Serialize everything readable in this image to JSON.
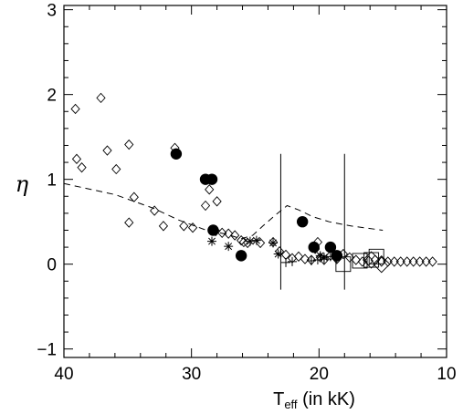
{
  "chart_data": {
    "type": "scatter",
    "title": "",
    "xlabel": {
      "main": "T",
      "sub": "eff",
      "suffix": " (in kK)"
    },
    "ylabel": "η",
    "xlim": [
      40,
      10
    ],
    "ylim": [
      -1.1,
      3.05
    ],
    "x_ticks": [
      40,
      30,
      20,
      10
    ],
    "y_ticks": [
      -1,
      0,
      1,
      2,
      3
    ],
    "x_tick_labels": [
      "40",
      "30",
      "20",
      "10"
    ],
    "y_tick_labels": [
      "−1",
      "0",
      "1",
      "2",
      "3"
    ],
    "grid": false,
    "legend": "none",
    "series": [
      {
        "marker": "open-diamond",
        "points": [
          [
            39.1,
            1.83
          ],
          [
            37.1,
            1.96
          ],
          [
            39.0,
            1.24
          ],
          [
            38.6,
            1.14
          ],
          [
            36.6,
            1.34
          ],
          [
            35.9,
            1.12
          ],
          [
            34.9,
            1.41
          ],
          [
            34.5,
            0.79
          ],
          [
            32.9,
            0.63
          ],
          [
            34.9,
            0.49
          ],
          [
            32.2,
            0.45
          ],
          [
            31.3,
            1.37
          ],
          [
            30.6,
            0.45
          ],
          [
            29.9,
            0.43
          ],
          [
            28.9,
            0.69
          ],
          [
            28.6,
            0.88
          ],
          [
            28.0,
            0.74
          ],
          [
            28.1,
            0.39
          ],
          [
            27.6,
            0.37
          ],
          [
            27.1,
            0.36
          ],
          [
            26.6,
            0.34
          ],
          [
            26.1,
            0.28
          ],
          [
            25.9,
            0.26
          ],
          [
            25.6,
            0.25
          ],
          [
            24.6,
            0.25
          ],
          [
            23.6,
            0.26
          ],
          [
            23.1,
            0.15
          ],
          [
            22.6,
            0.11
          ],
          [
            22.1,
            0.07
          ],
          [
            21.6,
            0.09
          ],
          [
            21.1,
            0.06
          ],
          [
            20.6,
            0.05
          ],
          [
            20.3,
            0.18
          ],
          [
            20.1,
            0.26
          ],
          [
            19.9,
            0.08
          ],
          [
            19.6,
            0.05
          ],
          [
            19.1,
            0.1
          ],
          [
            18.6,
            0.06
          ],
          [
            18.1,
            0.12
          ],
          [
            17.6,
            0.08
          ],
          [
            17.1,
            0.05
          ],
          [
            16.6,
            0.03
          ],
          [
            16.1,
            0.04
          ],
          [
            15.6,
            0.05
          ],
          [
            15.1,
            0.03
          ],
          [
            14.6,
            0.03
          ],
          [
            14.1,
            0.03
          ],
          [
            13.6,
            0.03
          ],
          [
            13.1,
            0.03
          ],
          [
            12.6,
            0.03
          ],
          [
            12.1,
            0.03
          ],
          [
            11.6,
            0.03
          ],
          [
            11.1,
            0.03
          ]
        ]
      },
      {
        "marker": "filled-circle",
        "points": [
          [
            31.2,
            1.3
          ],
          [
            28.9,
            1.0
          ],
          [
            28.4,
            1.0
          ],
          [
            28.3,
            0.4
          ],
          [
            26.1,
            0.1
          ],
          [
            21.3,
            0.5
          ],
          [
            20.4,
            0.2
          ],
          [
            19.1,
            0.2
          ],
          [
            18.6,
            0.1
          ]
        ]
      },
      {
        "marker": "asterisk",
        "points": [
          [
            28.4,
            0.27
          ],
          [
            27.1,
            0.21
          ],
          [
            25.4,
            0.27
          ],
          [
            24.9,
            0.28
          ],
          [
            23.6,
            0.25
          ],
          [
            23.2,
            0.12
          ],
          [
            19.9,
            0.1
          ],
          [
            19.6,
            0.08
          ]
        ]
      },
      {
        "marker": "plus",
        "points": [
          [
            22.6,
            0.02
          ],
          [
            22.1,
            0.03
          ],
          [
            20.6,
            0.04
          ],
          [
            20.1,
            0.05
          ],
          [
            19.6,
            0.06
          ],
          [
            19.1,
            0.09
          ],
          [
            18.6,
            0.07
          ]
        ]
      },
      {
        "marker": "open-square",
        "points": [
          [
            18.1,
            0.0
          ],
          [
            16.8,
            0.04
          ],
          [
            15.9,
            0.05
          ],
          [
            15.5,
            0.09
          ]
        ]
      },
      {
        "marker": "large-open-diamond",
        "points": [
          [
            15.9,
            0.05
          ],
          [
            15.1,
            0.0
          ]
        ]
      }
    ],
    "dashed_line": {
      "style": "dashed",
      "points": [
        [
          40,
          0.95
        ],
        [
          36,
          0.82
        ],
        [
          33,
          0.66
        ],
        [
          31,
          0.52
        ],
        [
          29,
          0.41
        ],
        [
          27.2,
          0.35
        ],
        [
          26.1,
          0.3
        ],
        [
          25.2,
          0.34
        ],
        [
          24.4,
          0.45
        ],
        [
          23.4,
          0.58
        ],
        [
          22.5,
          0.69
        ],
        [
          21.6,
          0.64
        ],
        [
          20.5,
          0.56
        ],
        [
          19.2,
          0.5
        ],
        [
          17.5,
          0.45
        ],
        [
          15.0,
          0.4
        ]
      ]
    },
    "vertical_bars": [
      {
        "x": 23.0,
        "y_from": -0.3,
        "y_to": 1.3
      },
      {
        "x": 18.0,
        "y_from": -0.3,
        "y_to": 1.3
      }
    ]
  }
}
